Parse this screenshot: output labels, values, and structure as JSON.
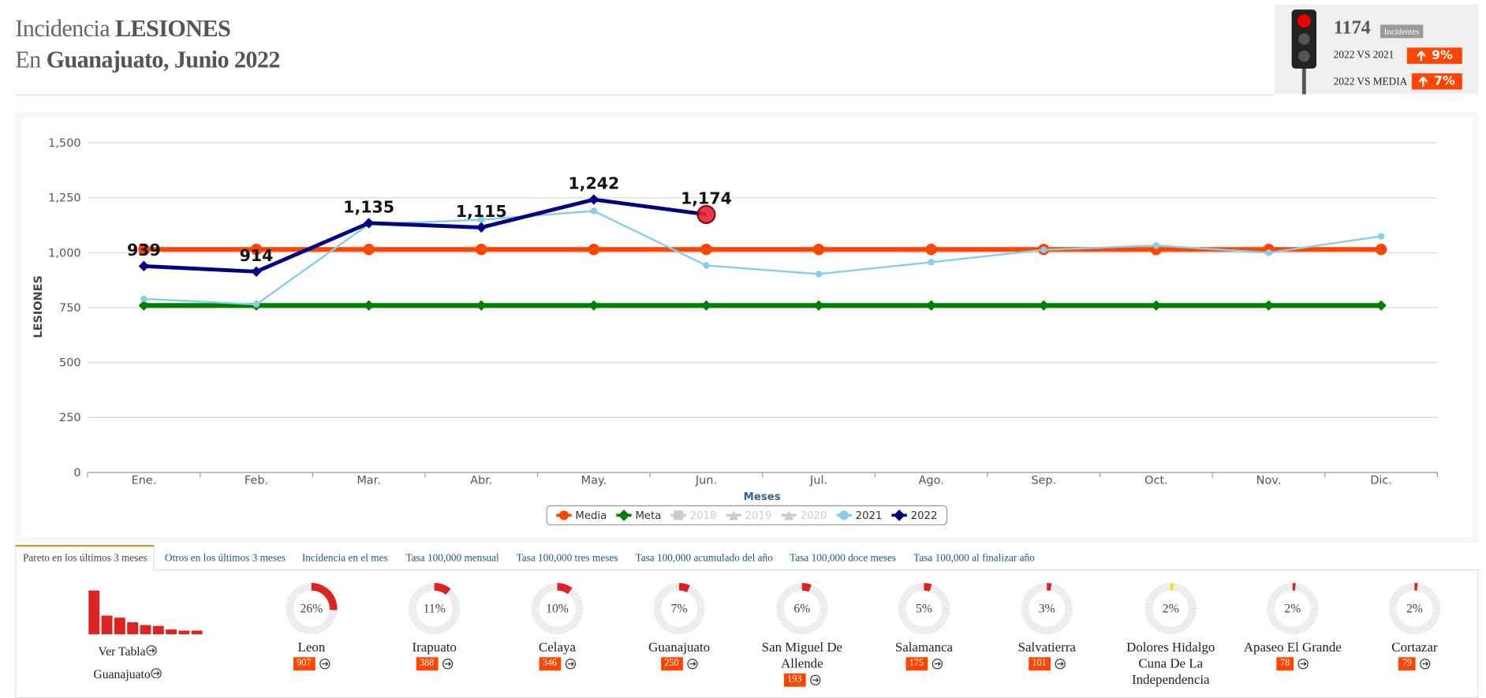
{
  "header": {
    "title_prefix": "Incidencia",
    "title_bold": "LESIONES",
    "subtitle_prefix": "En",
    "subtitle_bold": "Guanajuato, Junio 2022"
  },
  "summary": {
    "total": "1174",
    "total_label": "Incidentes",
    "comparisons": [
      {
        "label": "2022 VS 2021",
        "change": "9%"
      },
      {
        "label": "2022 VS MEDIA",
        "change": "7%"
      }
    ]
  },
  "chart_data": {
    "type": "line",
    "ylabel": "LESIONES",
    "xlabel": "Meses",
    "categories": [
      "Ene.",
      "Feb.",
      "Mar.",
      "Abr.",
      "May.",
      "Jun.",
      "Jul.",
      "Ago.",
      "Sep.",
      "Oct.",
      "Nov.",
      "Dic."
    ],
    "ylim": [
      0,
      1500
    ],
    "yticks": [
      0,
      250,
      500,
      750,
      {
        "value": 1000,
        "label": "1,000"
      },
      {
        "value": 1250,
        "label": "1,250"
      },
      {
        "value": 1500,
        "label": "1,500"
      }
    ],
    "grid": true,
    "legend": "bottom",
    "series": [
      {
        "name": "Media",
        "color": "#ff4500",
        "marker": "circle",
        "visible": true,
        "values": [
          1015,
          1015,
          1015,
          1015,
          1015,
          1015,
          1015,
          1015,
          1015,
          1015,
          1015,
          1015
        ]
      },
      {
        "name": "Meta",
        "color": "#008000",
        "marker": "diamond",
        "visible": true,
        "values": [
          760,
          760,
          760,
          760,
          760,
          760,
          760,
          760,
          760,
          760,
          760,
          760
        ]
      },
      {
        "name": "2018",
        "color": "#cccccc",
        "marker": "square",
        "visible": false,
        "values": [
          null,
          null,
          null,
          null,
          null,
          null,
          null,
          null,
          null,
          null,
          null,
          null
        ]
      },
      {
        "name": "2019",
        "color": "#cccccc",
        "marker": "triangle",
        "visible": false,
        "values": [
          null,
          null,
          null,
          null,
          null,
          null,
          null,
          null,
          null,
          null,
          null,
          null
        ]
      },
      {
        "name": "2020",
        "color": "#cccccc",
        "marker": "triangle",
        "visible": false,
        "values": [
          null,
          null,
          null,
          null,
          null,
          null,
          null,
          null,
          null,
          null,
          null,
          null
        ]
      },
      {
        "name": "2021",
        "color": "#87ceeb",
        "marker": "circle",
        "visible": true,
        "values": [
          790,
          765,
          1130,
          1150,
          1190,
          942,
          903,
          957,
          1013,
          1033,
          1000,
          1075
        ]
      },
      {
        "name": "2022",
        "color": "#000080",
        "marker": "diamond",
        "visible": true,
        "values": [
          939,
          914,
          1135,
          1115,
          1242,
          1174,
          null,
          null,
          null,
          null,
          null,
          null
        ],
        "value_labels": [
          "939",
          "914",
          "1,135",
          "1,115",
          "1,242",
          "1,174",
          null,
          null,
          null,
          null,
          null,
          null
        ]
      }
    ]
  },
  "tabs": [
    "Pareto en los últimos 3 meses",
    "Otros en los últimos 3 meses",
    "Incidencia en el mes",
    "Tasa 100,000 mensual",
    "Tasa 100,000 tres meses",
    "Tasa 100,000 acumulado del año",
    "Tasa 100,000 doce meses",
    "Tasa 100,000 al finalizar año"
  ],
  "pareto": {
    "table_link": "Ver Tabla",
    "region_link": "Guanajuato",
    "items": [
      {
        "name": "Leon",
        "pct": 26,
        "pct_label": "26%",
        "count": 907,
        "color": "#dd2222"
      },
      {
        "name": "Irapuato",
        "pct": 11,
        "pct_label": "11%",
        "count": 388,
        "color": "#dd2222"
      },
      {
        "name": "Celaya",
        "pct": 10,
        "pct_label": "10%",
        "count": 346,
        "color": "#dd2222"
      },
      {
        "name": "Guanajuato",
        "pct": 7,
        "pct_label": "7%",
        "count": 250,
        "color": "#dd2222"
      },
      {
        "name": "San Miguel De Allende",
        "pct": 6,
        "pct_label": "6%",
        "count": 193,
        "color": "#dd2222"
      },
      {
        "name": "Salamanca",
        "pct": 5,
        "pct_label": "5%",
        "count": 175,
        "color": "#dd2222"
      },
      {
        "name": "Salvatierra",
        "pct": 3,
        "pct_label": "3%",
        "count": 101,
        "color": "#dd2222"
      },
      {
        "name": "Dolores Hidalgo Cuna De La Independencia",
        "pct": 2,
        "pct_label": "2%",
        "color": "#f2e600"
      },
      {
        "name": "Apaseo El Grande",
        "pct": 2,
        "pct_label": "2%",
        "count": 78,
        "color": "#dd2222"
      },
      {
        "name": "Cortazar",
        "pct": 2,
        "pct_label": "2%",
        "count": 79,
        "color": "#dd2222"
      }
    ]
  }
}
